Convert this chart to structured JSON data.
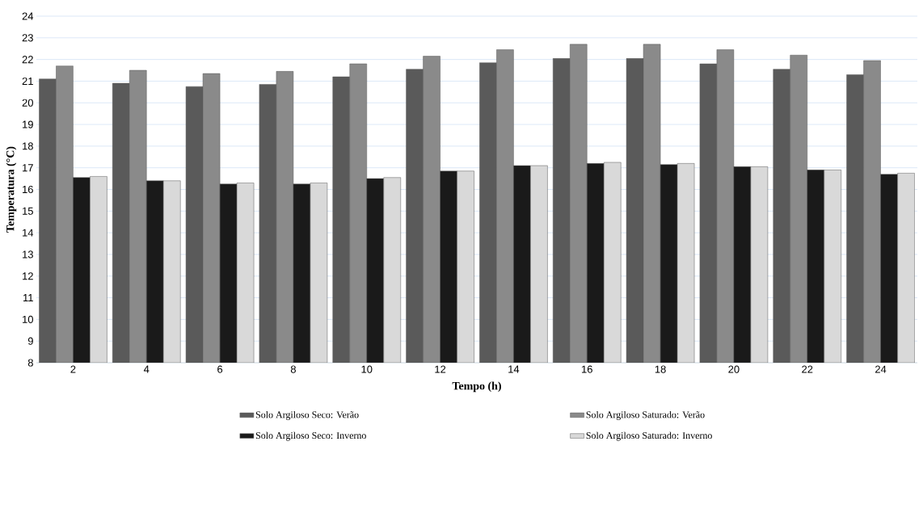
{
  "chart_data": {
    "type": "bar",
    "xlabel": "Tempo (h)",
    "ylabel": "Temperatura (°C)",
    "categories": [
      "2",
      "4",
      "6",
      "8",
      "10",
      "12",
      "14",
      "16",
      "18",
      "20",
      "22",
      "24"
    ],
    "series": [
      {
        "name": "Solo Argiloso Seco: Verão",
        "color": "#5a5a5a",
        "values": [
          21.1,
          20.9,
          20.75,
          20.85,
          21.2,
          21.55,
          21.85,
          22.05,
          22.05,
          21.8,
          21.55,
          21.3
        ]
      },
      {
        "name": "Solo Argiloso Saturado: Verão",
        "color": "#8a8a8a",
        "values": [
          21.7,
          21.5,
          21.35,
          21.45,
          21.8,
          22.15,
          22.45,
          22.7,
          22.7,
          22.45,
          22.2,
          21.95
        ]
      },
      {
        "name": "Solo Argiloso Seco: Inverno",
        "color": "#1a1a1a",
        "values": [
          16.55,
          16.4,
          16.25,
          16.25,
          16.5,
          16.85,
          17.1,
          17.2,
          17.15,
          17.05,
          16.9,
          16.7
        ]
      },
      {
        "name": "Solo Argiloso Saturado: Inverno",
        "color": "#d9d9d9",
        "values": [
          16.6,
          16.4,
          16.3,
          16.3,
          16.55,
          16.85,
          17.1,
          17.25,
          17.2,
          17.05,
          16.9,
          16.75
        ]
      }
    ],
    "ylim": [
      8,
      24
    ],
    "yticks": [
      8,
      9,
      10,
      11,
      12,
      13,
      14,
      15,
      16,
      17,
      18,
      19,
      20,
      21,
      22,
      23,
      24
    ],
    "grid": "y",
    "legend": "bottom"
  }
}
